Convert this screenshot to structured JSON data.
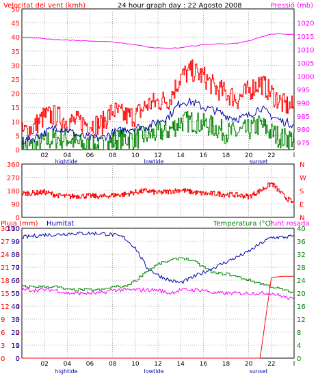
{
  "page_title": "24 hour graph day : 22 Agosto 2008",
  "colors": {
    "wind": "#ff0000",
    "pressure": "#ff00ff",
    "humidity": "#0000aa",
    "temperature": "#008000",
    "dewpoint": "#ff00ff",
    "rain": "#ff0000",
    "border": "#000000"
  },
  "labels": {
    "tides": [
      "hightide",
      "lowtide"
    ],
    "sunset": "sunset"
  },
  "chart_data": [
    {
      "type": "line",
      "title": "24 hour graph day : 22 Agosto 2008",
      "left_axis_label": "Velocitat del vent (kmh)",
      "right_axis_label": "Pressió (mb)",
      "left_ylim": [
        0,
        50
      ],
      "left_ticks": [
        "0",
        "5",
        "10",
        "15",
        "20",
        "25",
        "30",
        "35",
        "40",
        "45",
        "50"
      ],
      "right_ylim": [
        975,
        1020
      ],
      "right_ticks": [
        "975",
        "980",
        "985",
        "990",
        "995",
        "1000",
        "1005",
        "1010",
        "1015",
        "1020"
      ],
      "x_ticks": [
        "02",
        "04",
        "06",
        "08",
        "10",
        "12",
        "14",
        "16",
        "18",
        "20",
        "22",
        "l"
      ],
      "grid": true,
      "x_hours_from_start": [
        0,
        1,
        2,
        3,
        4,
        5,
        6,
        7,
        8,
        9,
        10,
        11,
        12,
        13,
        14,
        15,
        16,
        17,
        18,
        19,
        20,
        21,
        22,
        23,
        24
      ],
      "series": [
        {
          "name": "Pressió (mb)",
          "axis": "right",
          "values": [
            1014.6,
            1014.4,
            1014.1,
            1013.8,
            1013.6,
            1013.4,
            1013.2,
            1013.0,
            1012.8,
            1012.4,
            1011.8,
            1011.1,
            1010.6,
            1010.4,
            1010.7,
            1011.3,
            1011.8,
            1012.1,
            1012.2,
            1012.3,
            1013.2,
            1014.6,
            1015.8,
            1015.9,
            1015.6
          ]
        },
        {
          "name": "gusts",
          "axis": "left",
          "values": [
            6,
            8,
            12,
            12,
            10,
            10,
            9,
            9,
            14,
            12,
            12,
            16,
            17,
            18,
            26,
            28,
            26,
            22,
            20,
            18,
            21,
            24,
            20,
            16,
            15
          ]
        },
        {
          "name": "average",
          "axis": "left",
          "values": [
            3,
            4,
            6,
            8,
            7,
            5,
            4,
            4,
            6,
            7,
            8,
            8,
            10,
            12,
            17,
            17,
            15,
            14,
            12,
            11,
            12,
            15,
            12,
            10,
            9
          ]
        },
        {
          "name": "direction-minimum",
          "axis": "left",
          "values": [
            1,
            1,
            3,
            4,
            4,
            2,
            1,
            1,
            3,
            4,
            4,
            5,
            6,
            7,
            10,
            10,
            9,
            8,
            6,
            6,
            7,
            9,
            6,
            4,
            4
          ]
        }
      ]
    },
    {
      "type": "line",
      "right_axis_letters": [
        "N",
        "W",
        "S",
        "E",
        "N"
      ],
      "left_ylim": [
        0,
        360
      ],
      "left_ticks": [
        "0",
        "90",
        "180",
        "270",
        "360"
      ],
      "grid": true,
      "x_hours_from_start": [
        0,
        1,
        2,
        3,
        4,
        5,
        6,
        7,
        8,
        9,
        10,
        11,
        12,
        13,
        14,
        15,
        16,
        17,
        18,
        19,
        20,
        21,
        22,
        23,
        24
      ],
      "series": [
        {
          "name": "direction",
          "values": [
            160,
            165,
            170,
            150,
            140,
            145,
            145,
            140,
            150,
            155,
            170,
            180,
            165,
            175,
            185,
            170,
            160,
            160,
            155,
            150,
            140,
            180,
            230,
            150,
            90
          ]
        }
      ]
    },
    {
      "type": "line",
      "left_axis_labels": [
        "Pluja (mm)",
        "Humitat"
      ],
      "right_axis_labels": [
        "Temperatura (°C)",
        "Punt rosada"
      ],
      "rain_ylim": [
        0,
        10
      ],
      "rain_ticks": [
        "0",
        "1",
        "2",
        "3",
        "4",
        "5",
        "6",
        "7",
        "8",
        "9",
        "10"
      ],
      "humidity_ylim": [
        0,
        100
      ],
      "humidity_ticks": [
        "0",
        "10",
        "20",
        "30",
        "40",
        "50",
        "60",
        "70",
        "80",
        "90",
        "100"
      ],
      "outer_left_ticks": [
        "0",
        "3",
        "6",
        "9",
        "12",
        "15",
        "18",
        "21",
        "24",
        "27",
        "30"
      ],
      "right_ylim": [
        0,
        40
      ],
      "right_ticks": [
        "0",
        "4",
        "8",
        "12",
        "16",
        "20",
        "24",
        "28",
        "32",
        "36",
        "40"
      ],
      "x_ticks": [
        "02",
        "04",
        "06",
        "08",
        "10",
        "12",
        "14",
        "16",
        "18",
        "20",
        "22",
        "l"
      ],
      "grid": true,
      "x_hours_from_start": [
        0,
        1,
        2,
        3,
        4,
        5,
        6,
        7,
        8,
        9,
        10,
        11,
        12,
        13,
        14,
        15,
        16,
        17,
        18,
        19,
        20,
        21,
        22,
        23,
        24
      ],
      "series": [
        {
          "name": "Humitat",
          "axis": "humidity",
          "values": [
            93,
            94,
            95,
            95,
            96,
            96,
            96,
            96,
            95,
            93,
            85,
            70,
            64,
            60,
            58,
            62,
            66,
            70,
            74,
            78,
            82,
            88,
            93,
            93,
            94
          ]
        },
        {
          "name": "Temperatura (°C)",
          "axis": "right",
          "values": [
            22,
            22,
            22,
            22,
            21,
            21,
            21,
            21,
            22,
            22,
            24,
            27,
            29,
            30,
            31,
            30,
            28,
            26,
            26,
            25,
            24,
            23,
            22,
            21,
            20
          ]
        },
        {
          "name": "Punt rosada",
          "axis": "right",
          "values": [
            21,
            21,
            21,
            21,
            20,
            20,
            20,
            20,
            21,
            21,
            21,
            21,
            21,
            20,
            21,
            21,
            21,
            20,
            20,
            20,
            20,
            20,
            20,
            19,
            18
          ]
        },
        {
          "name": "Pluja (mm)",
          "axis": "rain",
          "values": [
            0,
            0,
            0,
            0,
            0,
            0,
            0,
            0,
            0,
            0,
            0,
            0,
            0,
            0,
            0,
            0,
            0,
            0,
            0,
            0,
            0,
            0,
            6.2,
            6.3,
            6.3
          ]
        }
      ]
    }
  ]
}
